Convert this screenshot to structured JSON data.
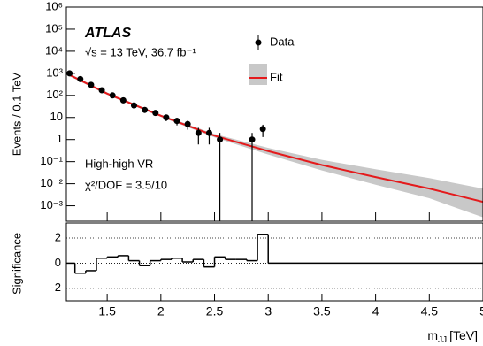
{
  "chart_data": [
    {
      "type": "scatter",
      "log_y": true,
      "y_label": "Events / 0.1 TeV",
      "annotations": [
        "ATLAS",
        "√s = 13 TeV, 36.7 fb⁻¹",
        "High-high VR",
        "χ²/DOF = 3.5/10"
      ],
      "xlim": [
        1.12,
        5.0
      ],
      "ylim": [
        0.0002,
        1000000
      ],
      "xticks": [
        1.5,
        2,
        2.5,
        3,
        3.5,
        4,
        4.5,
        5
      ],
      "yticks": [
        {
          "value": 1000000,
          "label": "10⁶"
        },
        {
          "value": 100000,
          "label": "10⁵"
        },
        {
          "value": 10000,
          "label": "10⁴"
        },
        {
          "value": 1000,
          "label": "10³"
        },
        {
          "value": 100,
          "label": "10²"
        },
        10,
        1,
        {
          "value": 0.1,
          "label": "10⁻¹"
        },
        {
          "value": 0.01,
          "label": "10⁻²"
        },
        {
          "value": 0.001,
          "label": "10⁻³"
        }
      ],
      "series": [
        {
          "name": "Data",
          "color": "#000000",
          "x": [
            1.15,
            1.25,
            1.35,
            1.45,
            1.55,
            1.65,
            1.75,
            1.85,
            1.95,
            2.05,
            2.15,
            2.25,
            2.35,
            2.45,
            2.55,
            2.85,
            2.95
          ],
          "values": [
            1000,
            550,
            300,
            170,
            100,
            60,
            35,
            22,
            16,
            10,
            7,
            5,
            2,
            2,
            1,
            1,
            3
          ],
          "errors": [
            32,
            23,
            17,
            13,
            10,
            8,
            6,
            4.7,
            4,
            3.2,
            2.6,
            2.2,
            1.4,
            1.4,
            1,
            1,
            1.7
          ]
        }
      ],
      "fit": {
        "name": "Fit",
        "color": "#e41a1c",
        "band_color": "#c8c8c8",
        "x": [
          1.12,
          1.5,
          2,
          2.5,
          3,
          3.5,
          4,
          4.5,
          5
        ],
        "values": [
          1000,
          120,
          12,
          1.5,
          0.3,
          0.07,
          0.02,
          0.006,
          0.0015
        ],
        "upper": [
          1150,
          135,
          13.5,
          1.8,
          0.42,
          0.12,
          0.045,
          0.018,
          0.006
        ],
        "lower": [
          870,
          106,
          10.6,
          1.25,
          0.21,
          0.04,
          0.009,
          0.0022,
          0.0003
        ]
      }
    },
    {
      "type": "histogram",
      "y_label": "Significance",
      "x_label": {
        "main": "m",
        "sub": "JJ",
        "unit": "[TeV]"
      },
      "xlim": [
        1.12,
        5.0
      ],
      "ylim": [
        -3,
        3.2
      ],
      "xticks": [
        1.5,
        2,
        2.5,
        3,
        3.5,
        4,
        4.5,
        5
      ],
      "yticks": [
        2,
        0,
        -2
      ],
      "grid": true,
      "color": "#000000",
      "bins": [
        1.1,
        1.2,
        1.3,
        1.4,
        1.5,
        1.6,
        1.7,
        1.8,
        1.9,
        2.0,
        2.1,
        2.2,
        2.3,
        2.4,
        2.5,
        2.6,
        2.7,
        2.8,
        2.9,
        3.0,
        5.0
      ],
      "values": [
        0,
        -0.8,
        -0.6,
        0.4,
        0.5,
        0.6,
        0.2,
        -0.2,
        0.2,
        0.3,
        0.4,
        0.1,
        0.3,
        -0.3,
        0.5,
        0.3,
        0.3,
        0.2,
        2.3,
        0
      ]
    }
  ]
}
